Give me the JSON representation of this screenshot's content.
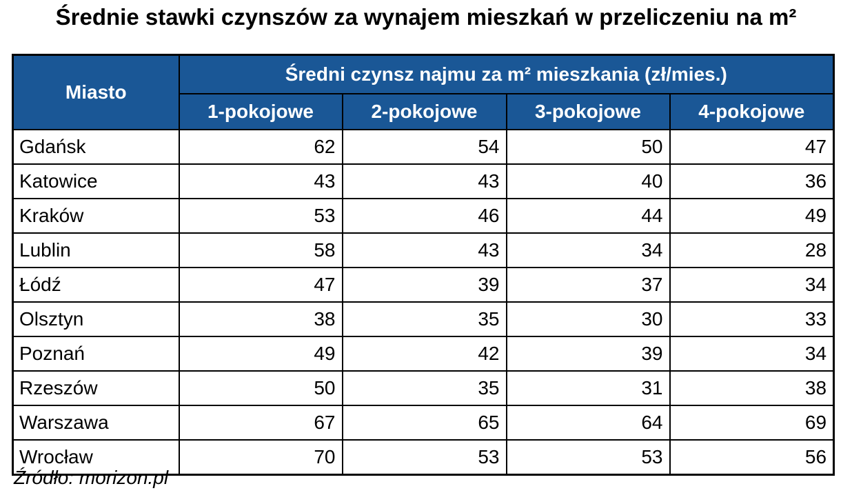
{
  "chart_data": {
    "type": "table",
    "title": "Średnie stawki czynszów za wynajem mieszkań w przeliczeniu na m²",
    "corner_header": "Miasto",
    "group_header": "Średni czynsz najmu za m² mieszkania (zł/mies.)",
    "columns": [
      "1-pokojowe",
      "2-pokojowe",
      "3-pokojowe",
      "4-pokojowe"
    ],
    "rows": [
      {
        "city": "Gdańsk",
        "values": [
          62,
          54,
          50,
          47
        ]
      },
      {
        "city": "Katowice",
        "values": [
          43,
          43,
          40,
          36
        ]
      },
      {
        "city": "Kraków",
        "values": [
          53,
          46,
          44,
          49
        ]
      },
      {
        "city": "Lublin",
        "values": [
          58,
          43,
          34,
          28
        ]
      },
      {
        "city": "Łódź",
        "values": [
          47,
          39,
          37,
          34
        ]
      },
      {
        "city": "Olsztyn",
        "values": [
          38,
          35,
          30,
          33
        ]
      },
      {
        "city": "Poznań",
        "values": [
          49,
          42,
          39,
          34
        ]
      },
      {
        "city": "Rzeszów",
        "values": [
          50,
          35,
          31,
          38
        ]
      },
      {
        "city": "Warszawa",
        "values": [
          67,
          65,
          64,
          69
        ]
      },
      {
        "city": "Wrocław",
        "values": [
          70,
          53,
          53,
          56
        ]
      }
    ],
    "source": "Źródło: morizon.pl"
  },
  "colors": {
    "header_bg": "#1A5796",
    "header_text": "#FFFFFF",
    "border": "#000000",
    "body_bg": "#FFFFFF",
    "body_text": "#000000"
  }
}
